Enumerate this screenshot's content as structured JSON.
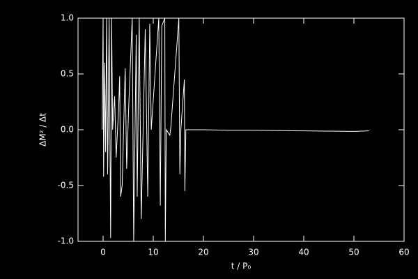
{
  "chart_data": {
    "type": "line",
    "xlabel": "t / P₀",
    "ylabel": "ΔM² / Δt",
    "x": [
      -0.2,
      0,
      0.1,
      0.3,
      0.5,
      0.7,
      0.9,
      1.0,
      1.2,
      1.5,
      1.7,
      1.9,
      2.3,
      2.6,
      3.1,
      3.3,
      3.5,
      3.8,
      4.4,
      4.7,
      5.1,
      5.8,
      6.1,
      6.6,
      6.8,
      7.2,
      7.6,
      8.4,
      8.9,
      9.3,
      9.6,
      11.1,
      11.4,
      11.7,
      12.3,
      12.4,
      12.6,
      13.3,
      13.5,
      15.1,
      15.3,
      15.5,
      16.2,
      16.3,
      16.5,
      20,
      25,
      30,
      40,
      50,
      53
    ],
    "series": [
      {
        "color": "#ffffff",
        "values": [
          0,
          1.0,
          -0.42,
          0.6,
          -0.2,
          1.0,
          -0.4,
          0,
          1.0,
          -0.97,
          1.0,
          0,
          0.3,
          -0.25,
          0.2,
          0.48,
          -0.6,
          -0.5,
          0.55,
          -0.35,
          0.2,
          1.0,
          -1.0,
          0.85,
          -0.6,
          1.0,
          -0.8,
          0.9,
          -0.6,
          0.95,
          0,
          1.0,
          -0.68,
          0.93,
          1.0,
          -1.0,
          0,
          -0.05,
          0.02,
          1.0,
          -0.4,
          0,
          0.45,
          -0.55,
          0,
          0,
          -0.005,
          -0.005,
          -0.01,
          -0.015,
          -0.01
        ]
      }
    ],
    "xlim": [
      -5,
      60
    ],
    "xticks": [
      0,
      10,
      20,
      30,
      40,
      50,
      60
    ],
    "ylim": [
      -1,
      1
    ],
    "yticks": [
      {
        "value": -1,
        "label": "-1.0"
      },
      {
        "value": -0.5,
        "label": "-0.5"
      },
      {
        "value": 0,
        "label": "0.0"
      },
      {
        "value": 0.5,
        "label": "0.5"
      },
      {
        "value": 1,
        "label": "1.0"
      }
    ]
  }
}
